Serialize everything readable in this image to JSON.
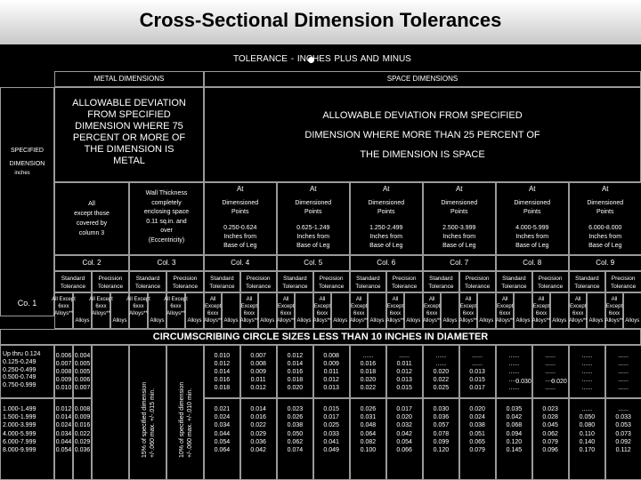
{
  "title": "Cross-Sectional Dimension Tolerances",
  "legend": "TOLERANCE - INCHES PLUS AND MINUS",
  "legend_icon_color": "#ffffff",
  "metal_dimensions": "METAL DIMENSIONS",
  "space_dimensions": "SPACE DIMENSIONS",
  "metal_deviation": "ALLOWABLE DEVIATION\nFROM SPECIFIED\nDIMENSION WHERE 75\nPERCENT OR MORE OF\nTHE DIMENSION IS\nMETAL",
  "space_deviation_1": "ALLOWABLE DEVIATION FROM SPECIFIED",
  "space_deviation_2": "DIMENSION WHERE MORE THAN 25 PERCENT OF",
  "space_deviation_3": "THE DIMENSION IS SPACE",
  "specified_label": "SPECIFIED\nDIMENSION",
  "inches_label": "inches",
  "col1_label": "Co. 1",
  "col2_desc": "All\nexcept those\ncovered by\ncolumn 3",
  "col3_desc": "Wall Thickness\ncompletely\nenclosing space\n0.11 sq.in. and\nover\n(Eccentricity)",
  "space_cols": [
    {
      "at": "At",
      "pts": "Dimensioned\nPoints",
      "range": "0.250-0.624\nInches from\nBase of Leg",
      "col": "Col. 4"
    },
    {
      "at": "At",
      "pts": "Dimensioned\nPoints",
      "range": "0.625-1.249\nInches from\nBase of Leg",
      "col": "Col. 5"
    },
    {
      "at": "At",
      "pts": "Dimensioned\nPoints",
      "range": "1.250-2.499\nInches from\nBase of Leg",
      "col": "Col. 6"
    },
    {
      "at": "At",
      "pts": "Dimensioned\nPoints",
      "range": "2.500-3.999\nInches from\nBase of Leg",
      "col": "Col. 7"
    },
    {
      "at": "At",
      "pts": "Dimensioned\nPoints",
      "range": "4.000-5.999\nInches from\nBase of Leg",
      "col": "Col. 8"
    },
    {
      "at": "At",
      "pts": "Dimensioned\nPoints",
      "range": "6.000-8.000\nInches from\nBase of Leg",
      "col": "Col. 9"
    }
  ],
  "col2_label": "Col. 2",
  "col3_label": "Col. 3",
  "std": "Standard\nTolerance",
  "prec": "Precision\nTolerance",
  "all_except": "All Except\n6xxx\nAlloys**",
  "alloys": "Alloys",
  "circle_heading": "CIRCUMSCRIBING CIRCLE SIZES LESS THAN 10 INCHES IN DIAMETER",
  "ranges_a": "Up thru 0.124\n0.125-0.249\n0.250-0.499\n0.500-0.749\n0.750-0.999",
  "ranges_b": "1.000-1.499\n1.500-1.999\n2.000-3.999\n4.000-5.999\n6.000-7.999\n8.000-9.999",
  "vert_std": "15% of specified dimension\n+/-.060 max. +/-.015 min.",
  "vert_prec": "10% of specified dimension\n+/-.060 max. +/-.010 min.",
  "note_030": "0.030",
  "note_020": "0.020",
  "block_a": [
    "0.006\n0.007\n0.008\n0.009\n0.010",
    "0.004\n0.005\n0.005\n0.006\n0.007",
    "0.010\n0.012\n0.014\n0.016\n0.018",
    "0.007\n0.008\n0.009\n0.011\n0.012",
    "0.012\n0.014\n0.016\n0.018\n0.020",
    "0.008\n0.009\n0.011\n0.012\n0.013",
    "......\n0.016\n0.018\n0.020\n0.022",
    "......\n0.011\n0.012\n0.013\n0.015",
    "......\n......\n0.020\n0.022\n0.025",
    "......\n......\n0.013\n0.015\n0.017",
    "......\n......\n......\n......\n......",
    "......\n......\n......\n......\n......",
    "......\n......\n......\n......\n......",
    "......\n......\n......\n......\n......"
  ],
  "block_b": [
    "0.012\n0.014\n0.024\n0.034\n0.044\n0.054",
    "0.008\n0.009\n0.016\n0.022\n0.029\n0.036",
    "0.021\n0.024\n0.034\n0.044\n0.054\n0.064",
    "0.014\n0.016\n0.022\n0.029\n0.036\n0.042",
    "0.023\n0.026\n0.038\n0.050\n0.062\n0.074",
    "0.015\n0.017\n0.025\n0.033\n0.041\n0.049",
    "0.026\n0.031\n0.048\n0.064\n0.082\n0.100",
    "0.017\n0.020\n0.032\n0.042\n0.054\n0.066",
    "0.030\n0.036\n0.057\n0.078\n0.099\n0.120",
    "0.020\n0.024\n0.038\n0.051\n0.065\n0.079",
    "0.035\n0.042\n0.068\n0.094\n0.120\n0.145",
    "0.023\n0.028\n0.045\n0.062\n0.079\n0.096",
    "......\n0.050\n0.080\n0.110\n0.140\n0.170",
    "......\n0.033\n0.053\n0.073\n0.092\n0.112"
  ]
}
